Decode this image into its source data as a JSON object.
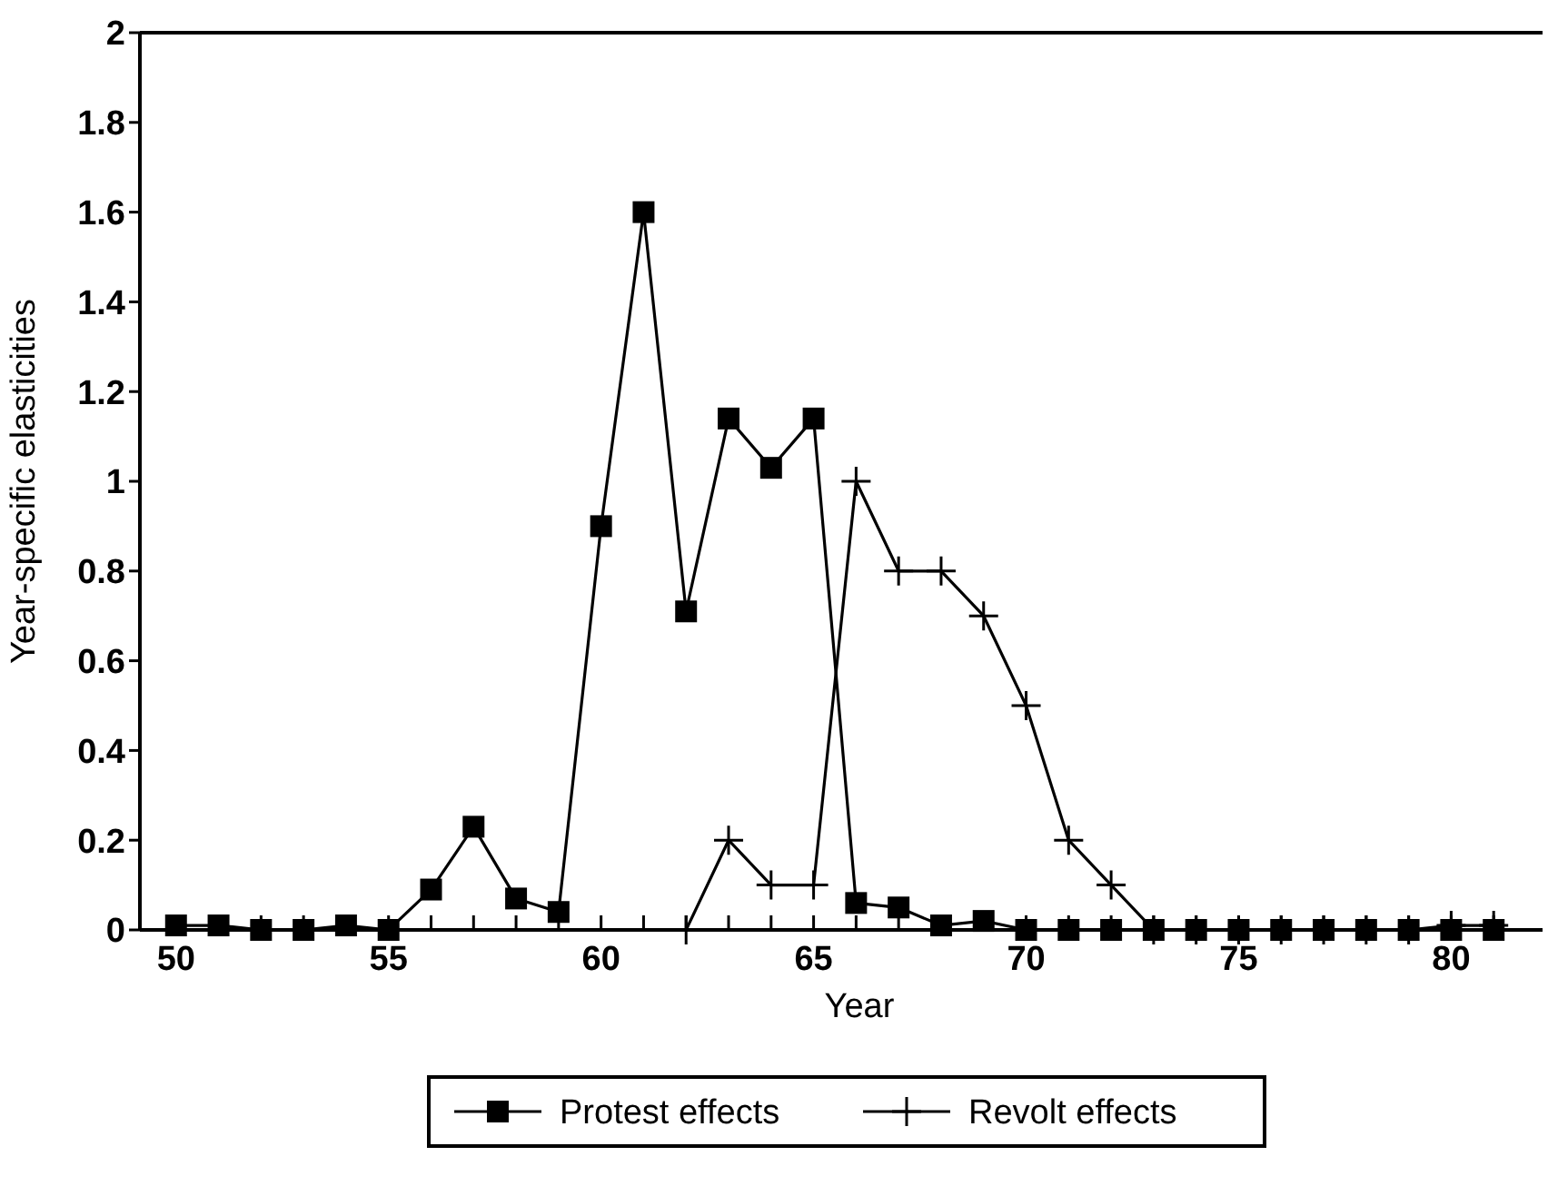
{
  "chart_data": {
    "type": "line",
    "xlabel": "Year",
    "ylabel": "Year-specific elasticities",
    "xlim": [
      49.15,
      82.15
    ],
    "ylim": [
      0,
      2
    ],
    "xticks": [
      50,
      {
        "value": 51,
        "label": null
      },
      {
        "value": 52,
        "label": null
      },
      {
        "value": 53,
        "label": null
      },
      {
        "value": 54,
        "label": null
      },
      55,
      {
        "value": 56,
        "label": null
      },
      {
        "value": 57,
        "label": null
      },
      {
        "value": 58,
        "label": null
      },
      {
        "value": 59,
        "label": null
      },
      60,
      {
        "value": 61,
        "label": null
      },
      {
        "value": 62,
        "label": null
      },
      {
        "value": 63,
        "label": null
      },
      {
        "value": 64,
        "label": null
      },
      65,
      {
        "value": 66,
        "label": null
      },
      {
        "value": 67,
        "label": null
      },
      {
        "value": 68,
        "label": null
      },
      {
        "value": 69,
        "label": null
      },
      70,
      {
        "value": 71,
        "label": null
      },
      {
        "value": 72,
        "label": null
      },
      {
        "value": 73,
        "label": null
      },
      {
        "value": 74,
        "label": null
      },
      75,
      {
        "value": 76,
        "label": null
      },
      {
        "value": 77,
        "label": null
      },
      {
        "value": 78,
        "label": null
      },
      {
        "value": 79,
        "label": null
      },
      80,
      {
        "value": 81,
        "label": null
      }
    ],
    "yticks": [
      0,
      0.2,
      0.4,
      0.6,
      0.8,
      1,
      1.2,
      1.4,
      1.6,
      1.8,
      2
    ],
    "grid": false,
    "legend": "bottom",
    "line_style": "solid",
    "series": [
      {
        "name": "Protest effects",
        "color": "#000000",
        "marker": "square",
        "x": [
          50,
          51,
          52,
          53,
          54,
          55,
          56,
          57,
          58,
          59,
          60,
          61,
          62,
          63,
          64,
          65,
          66,
          67,
          68,
          69,
          70,
          71,
          72,
          73,
          74,
          75,
          76,
          77,
          78,
          79,
          80,
          81
        ],
        "values": [
          0.01,
          0.01,
          0,
          0,
          0.01,
          0,
          0.09,
          0.23,
          0.07,
          0.04,
          0.9,
          1.6,
          0.71,
          1.14,
          1.03,
          1.14,
          0.06,
          0.05,
          0.01,
          0.02,
          0,
          0,
          0,
          0,
          0,
          0,
          0,
          0,
          0,
          0,
          0,
          0
        ]
      },
      {
        "name": "Revolt effects",
        "color": "#000000",
        "marker": "cross",
        "x": [
          62,
          63,
          64,
          65,
          66,
          67,
          68,
          69,
          70,
          71,
          72,
          73,
          74,
          75,
          76,
          77,
          78,
          79,
          80,
          81
        ],
        "values": [
          0,
          0.2,
          0.1,
          0.1,
          1,
          0.8,
          0.8,
          0.7,
          0.5,
          0.2,
          0.1,
          0,
          0,
          0,
          0,
          0,
          0,
          0,
          0.01,
          0.01
        ]
      }
    ]
  }
}
